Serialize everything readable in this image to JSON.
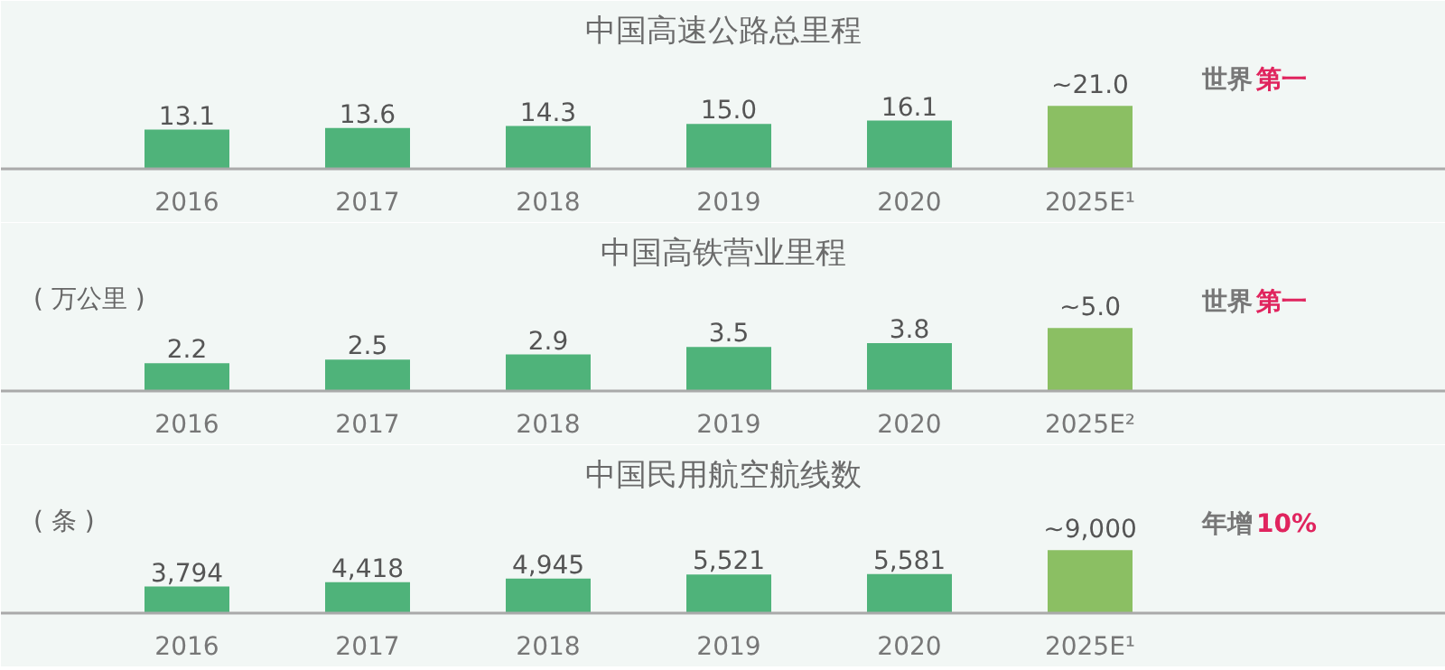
{
  "chart_data": [
    {
      "type": "bar",
      "title": "中国高速公路总里程",
      "categories": [
        "2016",
        "2017",
        "2018",
        "2019",
        "2020",
        "2025E¹"
      ],
      "values": [
        13.1,
        13.6,
        14.3,
        15.0,
        16.1,
        21.0
      ],
      "colors": [
        "#4fb37a",
        "#4fb37a",
        "#4fb37a",
        "#4fb37a",
        "#4fb37a",
        "#8bbf63"
      ],
      "value_labels": [
        "13.1",
        "13.6",
        "14.3",
        "15.0",
        "16.1",
        "~21.0"
      ],
      "annotations": [
        "世界",
        "第一"
      ],
      "grid": false
    },
    {
      "type": "bar",
      "title": "中国高铁营业里程",
      "ylabel": "( 万公里 )",
      "categories": [
        "2016",
        "2017",
        "2018",
        "2019",
        "2020",
        "2025E²"
      ],
      "values": [
        2.2,
        2.5,
        2.9,
        3.5,
        3.8,
        5.0
      ],
      "colors": [
        "#4fb37a",
        "#4fb37a",
        "#4fb37a",
        "#4fb37a",
        "#4fb37a",
        "#8bbf63"
      ],
      "value_labels": [
        "2.2",
        "2.5",
        "2.9",
        "3.5",
        "3.8",
        "~5.0"
      ],
      "annotations": [
        "世界",
        "第一"
      ],
      "grid": false
    },
    {
      "type": "bar",
      "title": "中国民用航空航线数",
      "ylabel": "( 条 )",
      "categories": [
        "2016",
        "2017",
        "2018",
        "2019",
        "2020",
        "2025E¹"
      ],
      "values": [
        3794,
        4418,
        4945,
        5521,
        5581,
        9000
      ],
      "colors": [
        "#4fb37a",
        "#4fb37a",
        "#4fb37a",
        "#4fb37a",
        "#4fb37a",
        "#8bbf63"
      ],
      "value_labels": [
        "3,794",
        "4,418",
        "4,945",
        "5,521",
        "5,581",
        "~9,000"
      ],
      "annotations": [
        "年增",
        "10%"
      ],
      "grid": false
    }
  ]
}
